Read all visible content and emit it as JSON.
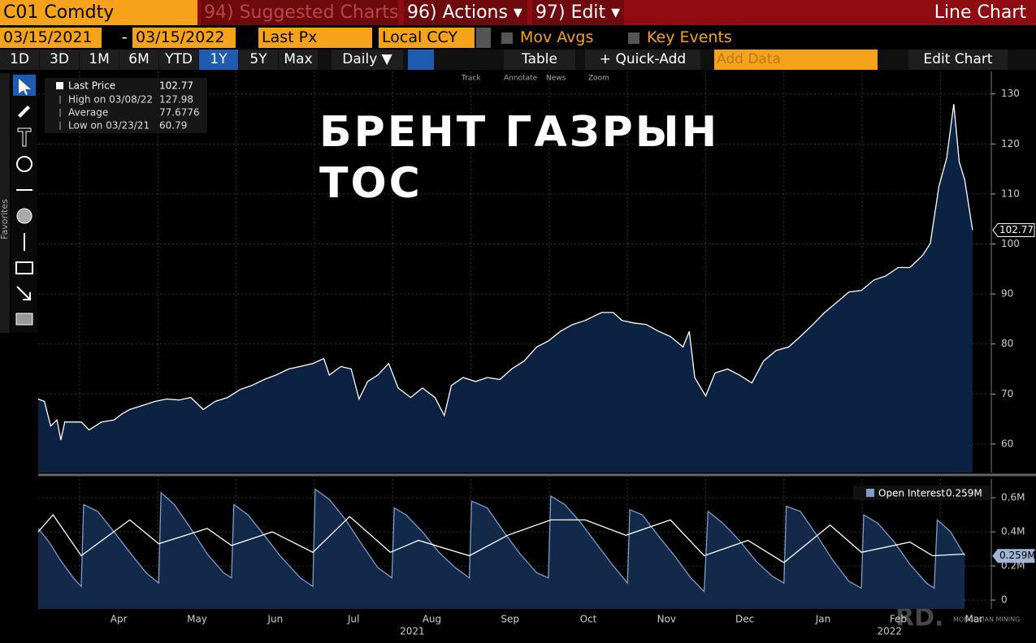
{
  "ui": {
    "ticker": "C01 Comdty",
    "suggested": "94) Suggested Charts",
    "actions": "96) Actions ▾",
    "edit": "97) Edit ▾",
    "chart_kind": "Line Chart",
    "start_date": "03/15/2021",
    "dash": "-",
    "end_date": "03/15/2022",
    "field": "Last Px",
    "currency": "Local CCY",
    "mov_avgs": "Mov Avgs",
    "key_events": "Key Events",
    "periods": [
      "1D",
      "3D",
      "1M",
      "6M",
      "YTD",
      "1Y",
      "5Y",
      "Max"
    ],
    "active_period_index": 5,
    "frequency": "Daily ▼",
    "table": "Table",
    "quick_add": "+ Quick-Add",
    "add_data": "Add Data",
    "edit_chart": "Edit Chart",
    "chart_tools": [
      "Track",
      "Annotate",
      "News",
      "Zoom"
    ],
    "favorites": "Favorites",
    "watermark_logo": "RD.",
    "watermark": "MONGOLIAN MINING"
  },
  "chart_data": [
    {
      "type": "area",
      "annotation": [
        "БРЕНТ ГАЗРЫН",
        "ТОС"
      ],
      "legend": "top-left",
      "x": [
        2.47,
        2.55,
        2.63,
        2.71,
        2.76,
        2.81,
        2.92,
        3.02,
        3.12,
        3.28,
        3.44,
        3.54,
        3.64,
        3.8,
        3.96,
        4.11,
        4.27,
        4.42,
        4.58,
        4.73,
        4.89,
        5.05,
        5.2,
        5.36,
        5.51,
        5.67,
        5.82,
        5.98,
        6.12,
        6.19,
        6.34,
        6.47,
        6.57,
        6.68,
        6.81,
        6.95,
        7.07,
        7.23,
        7.38,
        7.54,
        7.66,
        7.75,
        7.9,
        8.06,
        8.21,
        8.37,
        8.52,
        8.68,
        8.84,
        8.99,
        9.15,
        9.3,
        9.46,
        9.67,
        9.82,
        9.93,
        10.08,
        10.24,
        10.39,
        10.55,
        10.71,
        10.79,
        10.86,
        11.0,
        11.12,
        11.28,
        11.43,
        11.59,
        11.74,
        11.9,
        12.06,
        12.21,
        12.37,
        12.52,
        12.68,
        12.83,
        12.99,
        13.15,
        13.3,
        13.46,
        13.61,
        13.77,
        13.87,
        13.98,
        14.08,
        14.17,
        14.24,
        14.31,
        14.41
      ],
      "series": [
        {
          "name": "Last Price",
          "color": "#ffffff",
          "fill": "#0c2242",
          "values": [
            69.0,
            68.5,
            63.6,
            64.8,
            60.79,
            64.4,
            64.4,
            64.4,
            62.8,
            64.4,
            64.8,
            66.0,
            66.9,
            67.7,
            68.5,
            69.0,
            68.8,
            69.3,
            66.9,
            68.5,
            69.3,
            70.9,
            71.7,
            72.9,
            73.8,
            75.0,
            75.5,
            76.1,
            77.1,
            73.8,
            75.5,
            75.0,
            69.0,
            72.5,
            73.8,
            76.1,
            71.2,
            69.3,
            71.2,
            69.3,
            65.7,
            71.7,
            73.3,
            72.5,
            73.3,
            72.9,
            75.0,
            76.6,
            79.4,
            80.6,
            82.6,
            83.9,
            84.7,
            86.3,
            86.3,
            84.7,
            84.2,
            83.9,
            82.6,
            81.5,
            79.4,
            82.5,
            73.3,
            69.6,
            74.2,
            75.0,
            73.8,
            72.2,
            76.6,
            78.7,
            79.4,
            81.5,
            83.9,
            86.3,
            88.4,
            90.4,
            90.7,
            92.8,
            93.6,
            95.3,
            95.3,
            97.7,
            100.1,
            111.5,
            117.2,
            127.98,
            116.4,
            112.8,
            102.77
          ]
        }
      ],
      "stats": [
        {
          "label": "High on 03/08/22",
          "value": 127.98
        },
        {
          "label": "Average",
          "value": 77.6776
        },
        {
          "label": "Low on 03/23/21",
          "value": 60.79
        }
      ],
      "xlim": [
        2.47,
        14.65
      ],
      "xgrid": [
        3,
        4,
        5,
        6,
        7,
        8,
        9,
        10,
        11,
        12,
        13,
        14
      ],
      "ylim": [
        54.3,
        134.5
      ],
      "yticks": [
        60,
        70,
        80,
        90,
        100,
        110,
        120,
        130
      ],
      "grid": true
    },
    {
      "type": "area",
      "legend": "top-right",
      "series": [
        {
          "name": "Open Interest",
          "color": "#7d9cc8",
          "fill": "#13294a",
          "last_label": "0.259M",
          "x": [
            2.47,
            2.61,
            2.76,
            2.92,
            3.02,
            3.05,
            3.23,
            3.44,
            3.64,
            3.85,
            4.01,
            4.04,
            4.21,
            4.42,
            4.63,
            4.84,
            4.94,
            4.97,
            5.15,
            5.36,
            5.56,
            5.82,
            5.98,
            6.01,
            6.19,
            6.4,
            6.6,
            6.81,
            6.99,
            7.02,
            7.17,
            7.38,
            7.59,
            7.8,
            7.98,
            8.01,
            8.21,
            8.42,
            8.63,
            8.84,
            8.99,
            9.02,
            9.2,
            9.41,
            9.62,
            9.82,
            10.0,
            10.03,
            10.19,
            10.39,
            10.6,
            10.81,
            10.98,
            11.03,
            11.22,
            11.43,
            11.64,
            11.85,
            12.0,
            12.03,
            12.21,
            12.42,
            12.63,
            12.83,
            12.99,
            13.02,
            13.2,
            13.41,
            13.61,
            13.82,
            13.92,
            13.96,
            14.13,
            14.31
          ],
          "values": [
            0.42,
            0.34,
            0.23,
            0.13,
            0.08,
            0.56,
            0.52,
            0.4,
            0.28,
            0.16,
            0.1,
            0.63,
            0.56,
            0.42,
            0.27,
            0.16,
            0.13,
            0.56,
            0.5,
            0.38,
            0.26,
            0.13,
            0.08,
            0.65,
            0.59,
            0.47,
            0.33,
            0.19,
            0.13,
            0.54,
            0.5,
            0.4,
            0.28,
            0.19,
            0.13,
            0.58,
            0.54,
            0.4,
            0.27,
            0.16,
            0.13,
            0.61,
            0.56,
            0.45,
            0.32,
            0.2,
            0.1,
            0.53,
            0.5,
            0.38,
            0.26,
            0.13,
            0.05,
            0.52,
            0.45,
            0.35,
            0.23,
            0.14,
            0.1,
            0.55,
            0.52,
            0.38,
            0.23,
            0.11,
            0.07,
            0.5,
            0.45,
            0.34,
            0.21,
            0.1,
            0.07,
            0.47,
            0.4,
            0.259
          ]
        },
        {
          "color": "#ffffff",
          "x": [
            2.47,
            2.66,
            3.02,
            3.64,
            4.01,
            4.63,
            4.94,
            5.46,
            5.98,
            6.45,
            6.97,
            7.33,
            7.98,
            8.47,
            9.02,
            9.46,
            9.98,
            10.55,
            10.98,
            11.54,
            12.0,
            12.59,
            12.99,
            13.61,
            13.9,
            14.31
          ],
          "values": [
            0.4,
            0.5,
            0.26,
            0.47,
            0.33,
            0.42,
            0.32,
            0.4,
            0.28,
            0.49,
            0.28,
            0.35,
            0.26,
            0.38,
            0.47,
            0.47,
            0.38,
            0.47,
            0.26,
            0.35,
            0.22,
            0.44,
            0.28,
            0.34,
            0.26,
            0.27
          ]
        }
      ],
      "xlim": [
        2.47,
        14.65
      ],
      "xgrid": [
        3,
        4,
        5,
        6,
        7,
        8,
        9,
        10,
        11,
        12,
        13,
        14
      ],
      "xticks": [
        {
          "value": 3.5,
          "label": "Apr"
        },
        {
          "value": 4.5,
          "label": "May"
        },
        {
          "value": 5.5,
          "label": "Jun"
        },
        {
          "value": 6.5,
          "label": "Jul"
        },
        {
          "value": 7.5,
          "label": "Aug"
        },
        {
          "value": 8.5,
          "label": "Sep"
        },
        {
          "value": 9.5,
          "label": "Oct"
        },
        {
          "value": 10.5,
          "label": "Nov"
        },
        {
          "value": 11.5,
          "label": "Dec"
        },
        {
          "value": 12.5,
          "label": "Jan"
        },
        {
          "value": 13.46,
          "label": "Feb"
        },
        {
          "value": 14.43,
          "label": "Mar"
        }
      ],
      "year_labels": [
        {
          "value": 7.25,
          "label": "2021"
        },
        {
          "value": 13.35,
          "label": "2022"
        }
      ],
      "ylim": [
        -0.052,
        0.71
      ],
      "yticks": [
        0,
        {
          "value": 0.2,
          "label": "0.2M"
        },
        {
          "value": 0.4,
          "label": "0.4M"
        },
        {
          "value": 0.6,
          "label": "0.6M"
        }
      ],
      "grid": true
    }
  ]
}
